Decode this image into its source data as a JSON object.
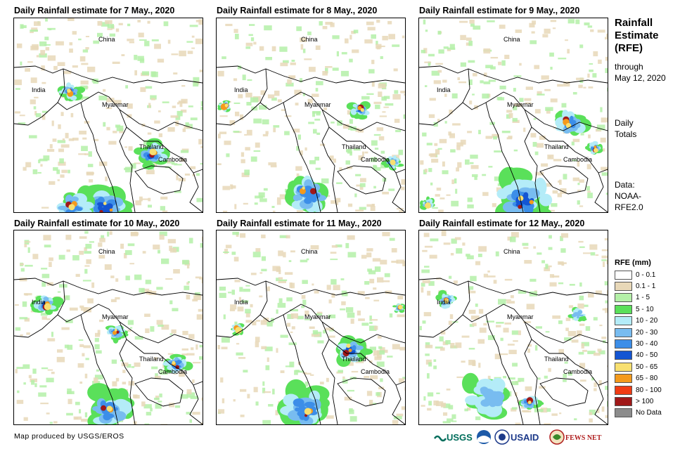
{
  "panels": [
    {
      "title": "Daily Rainfall estimate for 7 May., 2020"
    },
    {
      "title": "Daily Rainfall estimate for 8 May., 2020"
    },
    {
      "title": "Daily Rainfall estimate for 9 May., 2020"
    },
    {
      "title": "Daily Rainfall estimate for 10 May., 2020"
    },
    {
      "title": "Daily Rainfall estimate for 11 May., 2020"
    },
    {
      "title": "Daily Rainfall estimate for 12 May., 2020"
    }
  ],
  "map_labels": {
    "china": "China",
    "india": "India",
    "myanmar": "Myanmar",
    "thailand": "Thailand",
    "cambodia": "Cambodia"
  },
  "sidebar": {
    "title_line1": "Rainfall",
    "title_line2": "Estimate",
    "title_line3": "(RFE)",
    "through": "through",
    "date": "May 12, 2020",
    "daily": "Daily",
    "totals": "Totals",
    "data_label": "Data:",
    "data_source1": "NOAA-",
    "data_source2": "RFE2.0"
  },
  "legend": {
    "title": "RFE (mm)",
    "items": [
      {
        "label": "0 - 0.1",
        "color": "#ffffff"
      },
      {
        "label": "0.1 - 1",
        "color": "#e8d8b8"
      },
      {
        "label": "1 - 5",
        "color": "#b4f0a8"
      },
      {
        "label": "5 - 10",
        "color": "#5ae05a"
      },
      {
        "label": "10 - 20",
        "color": "#b4ecf8"
      },
      {
        "label": "20 - 30",
        "color": "#78bcf0"
      },
      {
        "label": "30 - 40",
        "color": "#3c8ee8"
      },
      {
        "label": "40 - 50",
        "color": "#1455d2"
      },
      {
        "label": "50 - 65",
        "color": "#f8e070"
      },
      {
        "label": "65 - 80",
        "color": "#f49a1c"
      },
      {
        "label": "80 - 100",
        "color": "#f03c14"
      },
      {
        "label": "> 100",
        "color": "#a01818"
      },
      {
        "label": "No Data",
        "color": "#8c8c8c"
      }
    ]
  },
  "footer": {
    "credit": "Map produced by USGS/EROS"
  },
  "logos": {
    "usgs": "USGS",
    "usaid": "USAID",
    "fewsnet": "FEWS NET"
  }
}
